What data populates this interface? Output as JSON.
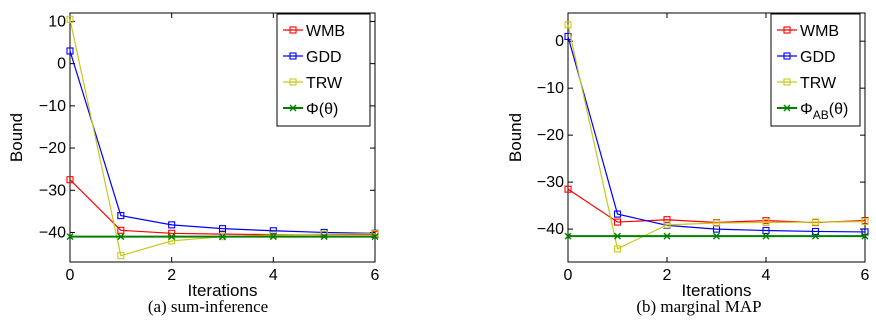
{
  "chart_data": [
    {
      "type": "line",
      "caption": "(a) sum-inference",
      "xlabel": "Iterations",
      "ylabel": "Bound",
      "xlim": [
        0,
        6
      ],
      "ylim": [
        -47,
        12
      ],
      "xticks": [
        0,
        2,
        4,
        6
      ],
      "yticks": [
        10,
        0,
        -10,
        -20,
        -30,
        -40
      ],
      "x": [
        0,
        1,
        2,
        3,
        4,
        5,
        6
      ],
      "legend_position": "top-right",
      "series": [
        {
          "name": "WMB",
          "color": "#ff0000",
          "marker": "square",
          "values": [
            -27.5,
            -39.5,
            -40.2,
            -40.4,
            -40.5,
            -40.5,
            -40.5
          ]
        },
        {
          "name": "GDD",
          "color": "#0000ff",
          "marker": "square",
          "values": [
            3,
            -36,
            -38.2,
            -39.1,
            -39.6,
            -40,
            -40.2
          ]
        },
        {
          "name": "TRW",
          "color": "#c8c81e",
          "marker": "square",
          "values": [
            10.5,
            -45.5,
            -42,
            -41,
            -40.6,
            -40.4,
            -40.3
          ]
        },
        {
          "name": "Φ(θ)",
          "color": "#008000",
          "marker": "x",
          "values": [
            -41,
            -41,
            -41,
            -41,
            -41,
            -41,
            -41
          ]
        }
      ]
    },
    {
      "type": "line",
      "caption": "(b) marginal MAP",
      "xlabel": "Iterations",
      "ylabel": "Bound",
      "xlim": [
        0,
        6
      ],
      "ylim": [
        -47,
        6
      ],
      "xticks": [
        0,
        2,
        4,
        6
      ],
      "yticks": [
        0,
        -10,
        -20,
        -30,
        -40
      ],
      "x": [
        0,
        1,
        2,
        3,
        4,
        5,
        6
      ],
      "legend_position": "top-right",
      "series": [
        {
          "name": "WMB",
          "color": "#ff0000",
          "marker": "square",
          "values": [
            -31.5,
            -38.5,
            -38,
            -38.6,
            -38.2,
            -38.6,
            -38.2
          ]
        },
        {
          "name": "GDD",
          "color": "#0000ff",
          "marker": "square",
          "values": [
            1,
            -36.8,
            -39.2,
            -40,
            -40.3,
            -40.5,
            -40.6
          ]
        },
        {
          "name": "TRW",
          "color": "#c8c81e",
          "marker": "square",
          "values": [
            3.5,
            -44.2,
            -39.1,
            -38.7,
            -38.6,
            -38.5,
            -38.4
          ]
        },
        {
          "name": "ΦAB(θ)",
          "color": "#008000",
          "marker": "x",
          "values": [
            -41.5,
            -41.5,
            -41.5,
            -41.5,
            -41.5,
            -41.5,
            -41.5
          ]
        }
      ]
    }
  ]
}
